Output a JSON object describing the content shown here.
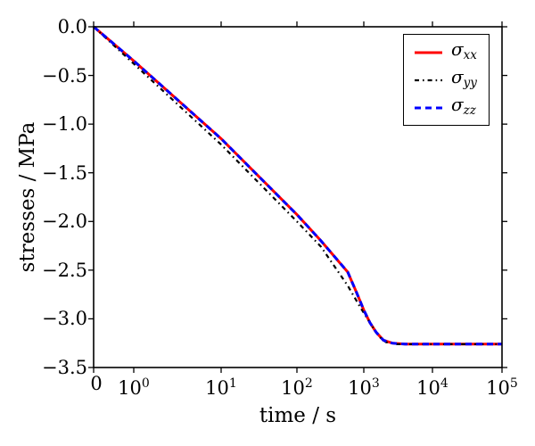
{
  "chart_data": {
    "type": "line",
    "title": "",
    "xlabel": "time / s",
    "ylabel": "stresses / MPa",
    "x_scale": "symlog (linear from 0 to 1, logarithmic from 1 to 1e5)",
    "xlim": [
      0,
      100000
    ],
    "ylim": [
      -3.5,
      0.0
    ],
    "grid": false,
    "legend_position": "upper right",
    "x_tick_labels": [
      "0",
      "10^0",
      "10^1",
      "10^2",
      "10^3",
      "10^4",
      "10^5"
    ],
    "x_tick_values": [
      0,
      1,
      10,
      100,
      1000,
      10000,
      100000
    ],
    "y_tick_labels": [
      "0.0",
      "−0.5",
      "−1.0",
      "−1.5",
      "−2.0",
      "−2.5",
      "−3.0",
      "−3.5"
    ],
    "y_tick_values": [
      0,
      -0.5,
      -1.0,
      -1.5,
      -2.0,
      -2.5,
      -3.0,
      -3.5
    ],
    "plateau_value": -3.26,
    "series": [
      {
        "name": "sigma_xx",
        "legend_sym": "σ",
        "legend_sub": "xx",
        "color": "#ff0000",
        "linestyle": "solid",
        "linewidth": 3,
        "x": [
          0,
          1,
          10,
          100,
          230,
          575,
          780,
          1000,
          1230,
          1520,
          1930,
          2600,
          4000,
          100000
        ],
        "y": [
          0.0,
          -0.35,
          -1.15,
          -1.93,
          -2.2,
          -2.52,
          -2.73,
          -2.91,
          -3.04,
          -3.14,
          -3.22,
          -3.25,
          -3.26,
          -3.26
        ]
      },
      {
        "name": "sigma_yy",
        "legend_sym": "σ",
        "legend_sub": "yy",
        "color": "#000000",
        "linestyle": "dashdot",
        "linewidth": 2.2,
        "x": [
          0,
          1,
          10,
          100,
          230,
          575,
          900,
          1230,
          1660,
          2100,
          3000,
          100000
        ],
        "y": [
          0.0,
          -0.38,
          -1.21,
          -2.0,
          -2.26,
          -2.66,
          -2.89,
          -3.04,
          -3.18,
          -3.24,
          -3.26,
          -3.26
        ]
      },
      {
        "name": "sigma_zz",
        "legend_sym": "σ",
        "legend_sub": "zz",
        "color": "#0000ff",
        "linestyle": "dashed",
        "linewidth": 3,
        "x": [
          0,
          1,
          10,
          100,
          230,
          575,
          780,
          1000,
          1230,
          1520,
          1930,
          2600,
          4000,
          100000
        ],
        "y": [
          0.0,
          -0.35,
          -1.15,
          -1.93,
          -2.2,
          -2.52,
          -2.73,
          -2.91,
          -3.04,
          -3.14,
          -3.22,
          -3.25,
          -3.26,
          -3.26
        ]
      }
    ]
  }
}
